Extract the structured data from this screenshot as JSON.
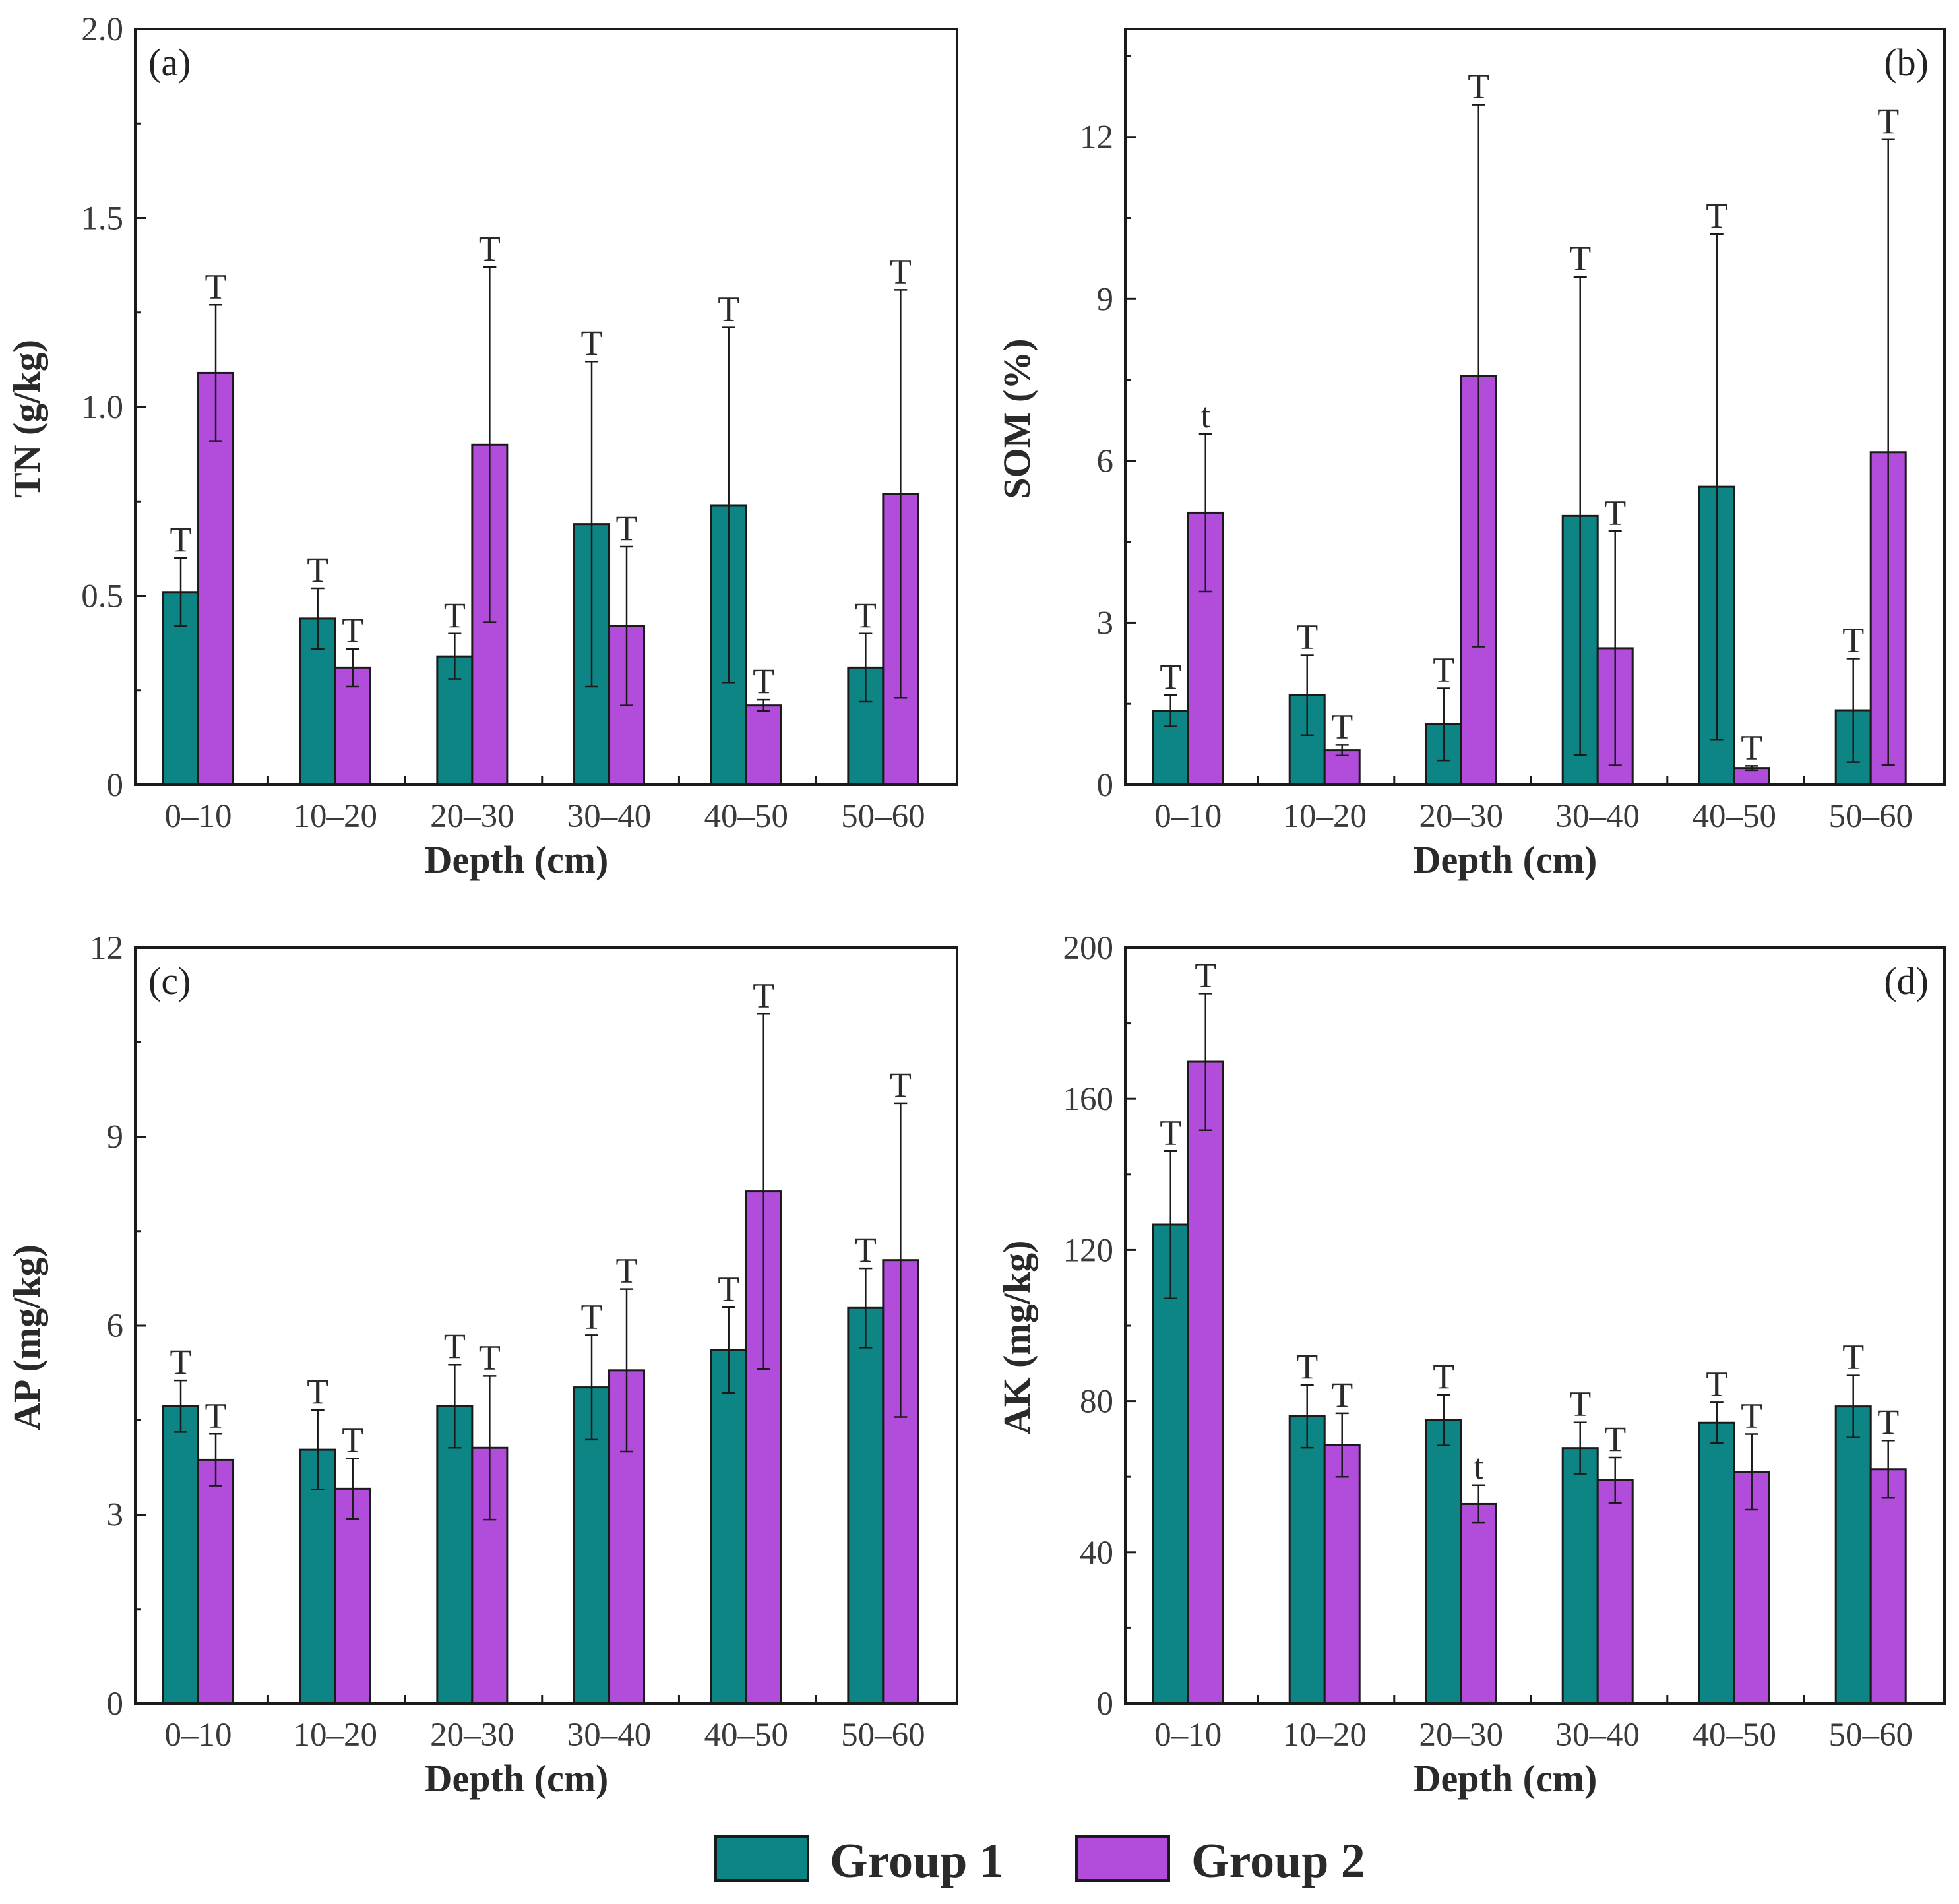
{
  "colors": {
    "group1": "#0d8585",
    "group2": "#b24ddb"
  },
  "legend": {
    "group1": "Group 1",
    "group2": "Group 2"
  },
  "chart_data": [
    {
      "panel": "(a)",
      "type": "bar",
      "title": "",
      "xlabel": "Depth (cm)",
      "ylabel": "TN (g/kg)",
      "ylim": [
        0,
        2.0
      ],
      "yticks": [
        0,
        0.5,
        1.0,
        1.5,
        2.0
      ],
      "ytick_labels": [
        "0",
        "0.5",
        "1.0",
        "1.5",
        "2.0"
      ],
      "categories": [
        "0–10",
        "10–20",
        "20–30",
        "30–40",
        "40–50",
        "50–60"
      ],
      "series": [
        {
          "name": "Group 1",
          "values": [
            0.51,
            0.44,
            0.34,
            0.69,
            0.74,
            0.31
          ],
          "err_low": [
            0.09,
            0.08,
            0.06,
            0.43,
            0.47,
            0.09
          ],
          "err_high": [
            0.09,
            0.08,
            0.06,
            0.43,
            0.47,
            0.09
          ],
          "labels": [
            "T",
            "T",
            "T",
            "T",
            "T",
            "T"
          ]
        },
        {
          "name": "Group 2",
          "values": [
            1.09,
            0.31,
            0.9,
            0.42,
            0.21,
            0.77
          ],
          "err_low": [
            0.18,
            0.05,
            0.47,
            0.21,
            0.015,
            0.54
          ],
          "err_high": [
            0.18,
            0.05,
            0.47,
            0.21,
            0.015,
            0.54
          ],
          "labels": [
            "T",
            "T",
            "T",
            "T",
            "T",
            "T"
          ]
        }
      ]
    },
    {
      "panel": "(b)",
      "type": "bar",
      "title": "",
      "xlabel": "Depth (cm)",
      "ylabel": "SOM (%)",
      "ylim": [
        0,
        14
      ],
      "yticks": [
        0,
        3,
        6,
        9,
        12
      ],
      "ytick_labels": [
        "0",
        "3",
        "6",
        "9",
        "12"
      ],
      "categories": [
        "0–10",
        "10–20",
        "20–30",
        "30–40",
        "40–50",
        "50–60"
      ],
      "series": [
        {
          "name": "Group 1",
          "values": [
            1.37,
            1.66,
            1.12,
            4.98,
            5.52,
            1.38
          ],
          "err_low": [
            0.29,
            0.74,
            0.67,
            4.43,
            4.68,
            0.96
          ],
          "err_high": [
            0.29,
            0.74,
            0.67,
            4.43,
            4.68,
            0.96
          ],
          "labels": [
            "T",
            "T",
            "T",
            "T",
            "T",
            "T"
          ]
        },
        {
          "name": "Group 2",
          "values": [
            5.04,
            0.64,
            7.58,
            2.53,
            0.31,
            6.16
          ],
          "err_low": [
            1.46,
            0.1,
            5.02,
            2.17,
            0.04,
            5.79
          ],
          "err_high": [
            1.46,
            0.1,
            5.02,
            2.17,
            0.04,
            5.79
          ],
          "labels": [
            "t",
            "T",
            "T",
            "T",
            "T",
            "T"
          ]
        }
      ]
    },
    {
      "panel": "(c)",
      "type": "bar",
      "title": "",
      "xlabel": "Depth (cm)",
      "ylabel": "AP (mg/kg)",
      "ylim": [
        0,
        12
      ],
      "yticks": [
        0,
        3,
        6,
        9,
        12
      ],
      "ytick_labels": [
        "0",
        "3",
        "6",
        "9",
        "12"
      ],
      "categories": [
        "0–10",
        "10–20",
        "20–30",
        "30–40",
        "40–50",
        "50–60"
      ],
      "series": [
        {
          "name": "Group 1",
          "values": [
            4.72,
            4.03,
            4.72,
            5.02,
            5.61,
            6.28
          ],
          "err_low": [
            0.41,
            0.63,
            0.66,
            0.83,
            0.68,
            0.63
          ],
          "err_high": [
            0.41,
            0.63,
            0.66,
            0.83,
            0.68,
            0.63
          ],
          "labels": [
            "T",
            "T",
            "T",
            "T",
            "T",
            "T"
          ]
        },
        {
          "name": "Group 2",
          "values": [
            3.87,
            3.41,
            4.06,
            5.29,
            8.13,
            7.04
          ],
          "err_low": [
            0.41,
            0.48,
            1.14,
            1.29,
            2.82,
            2.49
          ],
          "err_high": [
            0.41,
            0.48,
            1.14,
            1.29,
            2.82,
            2.49
          ],
          "labels": [
            "T",
            "T",
            "T",
            "T",
            "T",
            "T"
          ]
        }
      ]
    },
    {
      "panel": "(d)",
      "type": "bar",
      "title": "",
      "xlabel": "Depth (cm)",
      "ylabel": "AK (mg/kg)",
      "ylim": [
        0,
        200
      ],
      "yticks": [
        0,
        40,
        80,
        120,
        160,
        200
      ],
      "ytick_labels": [
        "0",
        "40",
        "80",
        "120",
        "160",
        "200"
      ],
      "categories": [
        "0–10",
        "10–20",
        "20–30",
        "30–40",
        "40–50",
        "50–60"
      ],
      "series": [
        {
          "name": "Group 1",
          "values": [
            126.7,
            76.0,
            75.0,
            67.6,
            74.3,
            78.6
          ],
          "err_low": [
            19.5,
            8.3,
            6.7,
            6.8,
            5.4,
            8.2
          ],
          "err_high": [
            19.5,
            8.3,
            6.7,
            6.8,
            5.4,
            8.2
          ],
          "labels": [
            "T",
            "T",
            "T",
            "T",
            "T",
            "T"
          ]
        },
        {
          "name": "Group 2",
          "values": [
            169.8,
            68.4,
            52.8,
            59.1,
            61.3,
            62.0
          ],
          "err_low": [
            18.1,
            8.4,
            5.0,
            6.0,
            10.0,
            7.6
          ],
          "err_high": [
            18.1,
            8.4,
            5.0,
            6.0,
            10.0,
            7.6
          ],
          "labels": [
            "T",
            "T",
            "t",
            "T",
            "T",
            "T"
          ]
        }
      ]
    }
  ]
}
